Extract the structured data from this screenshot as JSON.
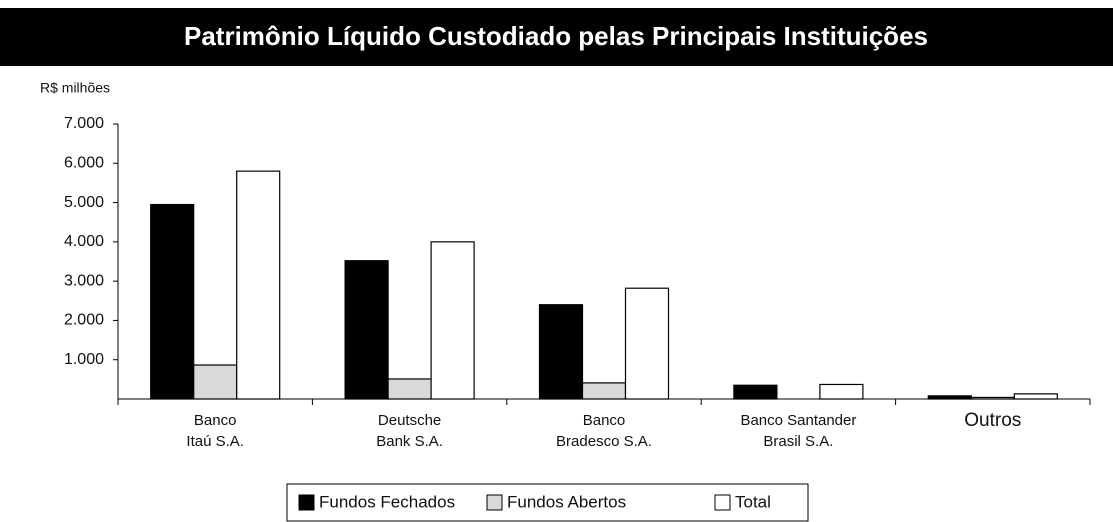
{
  "chart_data": {
    "type": "bar",
    "title": "Patrimônio Líquido Custodiado pelas Principais Instituições",
    "y_label": "R$ milhões",
    "categories": [
      [
        "Banco",
        "Itaú S.A."
      ],
      [
        "Deutsche",
        "Bank S.A."
      ],
      [
        "Banco",
        "Bradesco S.A."
      ],
      [
        "Banco Santander",
        "Brasil S.A."
      ],
      [
        "Outros"
      ]
    ],
    "series": [
      {
        "name": "Fundos Fechados",
        "color": "#000000",
        "values": [
          4950,
          3520,
          2400,
          350,
          80
        ]
      },
      {
        "name": "Fundos Abertos",
        "color": "#d9d9d9",
        "values": [
          865,
          510,
          410,
          0,
          40
        ]
      },
      {
        "name": "Total",
        "color": "#ffffff",
        "values": [
          5800,
          4000,
          2820,
          370,
          130
        ]
      }
    ],
    "ylim": [
      0,
      7000
    ],
    "yticks": [
      {
        "value": 1000,
        "label": "1.000"
      },
      {
        "value": 2000,
        "label": "2.000"
      },
      {
        "value": 3000,
        "label": "3.000"
      },
      {
        "value": 4000,
        "label": "4.000"
      },
      {
        "value": 5000,
        "label": "5.000"
      },
      {
        "value": 6000,
        "label": "6.000"
      },
      {
        "value": 7000,
        "label": "7.000"
      }
    ],
    "legend": "bottom"
  }
}
